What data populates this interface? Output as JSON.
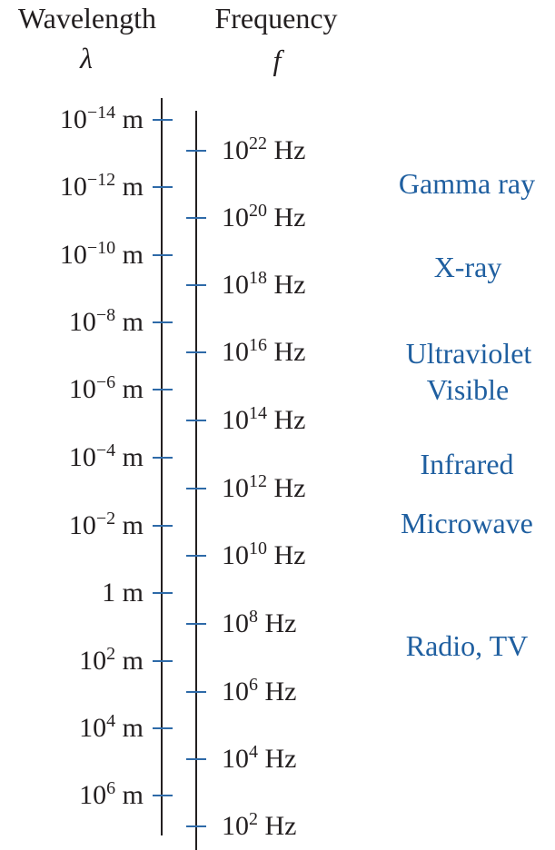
{
  "headers": {
    "wavelength_title": "Wavelength",
    "wavelength_symbol": "λ",
    "frequency_title": "Frequency",
    "frequency_symbol": "f"
  },
  "wavelength_scale": [
    {
      "base": "10",
      "exp": "−14",
      "unit": " m"
    },
    {
      "base": "10",
      "exp": "−12",
      "unit": " m"
    },
    {
      "base": "10",
      "exp": "−10",
      "unit": " m"
    },
    {
      "base": "10",
      "exp": "−8",
      "unit": " m"
    },
    {
      "base": "10",
      "exp": "−6",
      "unit": " m"
    },
    {
      "base": "10",
      "exp": "−4",
      "unit": " m"
    },
    {
      "base": "10",
      "exp": "−2",
      "unit": " m"
    },
    {
      "base": "1",
      "exp": "",
      "unit": " m"
    },
    {
      "base": "10",
      "exp": "2",
      "unit": " m"
    },
    {
      "base": "10",
      "exp": "4",
      "unit": " m"
    },
    {
      "base": "10",
      "exp": "6",
      "unit": " m"
    }
  ],
  "frequency_scale": [
    {
      "base": "10",
      "exp": "22",
      "unit": " Hz"
    },
    {
      "base": "10",
      "exp": "20",
      "unit": " Hz"
    },
    {
      "base": "10",
      "exp": "18",
      "unit": " Hz"
    },
    {
      "base": "10",
      "exp": "16",
      "unit": " Hz"
    },
    {
      "base": "10",
      "exp": "14",
      "unit": " Hz"
    },
    {
      "base": "10",
      "exp": "12",
      "unit": " Hz"
    },
    {
      "base": "10",
      "exp": "10",
      "unit": " Hz"
    },
    {
      "base": "10",
      "exp": "8",
      "unit": " Hz"
    },
    {
      "base": "10",
      "exp": "6",
      "unit": " Hz"
    },
    {
      "base": "10",
      "exp": "4",
      "unit": " Hz"
    },
    {
      "base": "10",
      "exp": "2",
      "unit": " Hz"
    }
  ],
  "bands": [
    {
      "name": "Gamma ray"
    },
    {
      "name": "X-ray"
    },
    {
      "name": "Ultraviolet"
    },
    {
      "name": "Visible"
    },
    {
      "name": "Infrared"
    },
    {
      "name": "Microwave"
    },
    {
      "name": "Radio, TV"
    }
  ],
  "colors": {
    "text": "#231f20",
    "band_text": "#1f5fa0",
    "tick": "#2e6aa8"
  }
}
